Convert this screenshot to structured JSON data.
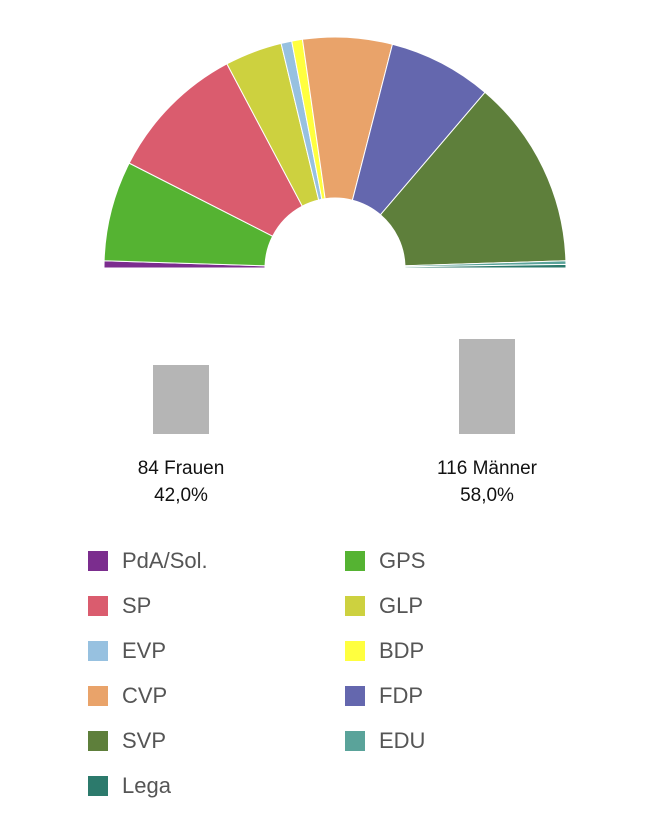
{
  "chart_data": {
    "type": "pie",
    "variant": "parliament-semicircle",
    "total_seats": 200,
    "parties": [
      {
        "name": "PdA/Sol.",
        "seats": 2,
        "color": "#7B2D8E"
      },
      {
        "name": "GPS",
        "seats": 28,
        "color": "#55B332"
      },
      {
        "name": "SP",
        "seats": 39,
        "color": "#DA5C6E"
      },
      {
        "name": "GLP",
        "seats": 16,
        "color": "#CDD13F"
      },
      {
        "name": "EVP",
        "seats": 3,
        "color": "#97C1E0"
      },
      {
        "name": "BDP",
        "seats": 3,
        "color": "#FFFF3F"
      },
      {
        "name": "CVP",
        "seats": 25,
        "color": "#E9A36A"
      },
      {
        "name": "FDP",
        "seats": 29,
        "color": "#6467AE"
      },
      {
        "name": "SVP",
        "seats": 53,
        "color": "#5E7F3B"
      },
      {
        "name": "EDU",
        "seats": 1,
        "color": "#5AA39A"
      },
      {
        "name": "Lega",
        "seats": 1,
        "color": "#2C7A6C"
      }
    ],
    "gender": {
      "women": {
        "count": 84,
        "label": "84 Frauen",
        "percent": "42,0%"
      },
      "men": {
        "count": 116,
        "label": "116 Männer",
        "percent": "58,0%"
      }
    }
  },
  "legend": [
    {
      "label": "PdA/Sol.",
      "color": "#7B2D8E"
    },
    {
      "label": "GPS",
      "color": "#55B332"
    },
    {
      "label": "SP",
      "color": "#DA5C6E"
    },
    {
      "label": "GLP",
      "color": "#CDD13F"
    },
    {
      "label": "EVP",
      "color": "#97C1E0"
    },
    {
      "label": "BDP",
      "color": "#FFFF3F"
    },
    {
      "label": "CVP",
      "color": "#E9A36A"
    },
    {
      "label": "FDP",
      "color": "#6467AE"
    },
    {
      "label": "SVP",
      "color": "#5E7F3B"
    },
    {
      "label": "EDU",
      "color": "#5AA39A"
    },
    {
      "label": "Lega",
      "color": "#2C7A6C"
    }
  ]
}
